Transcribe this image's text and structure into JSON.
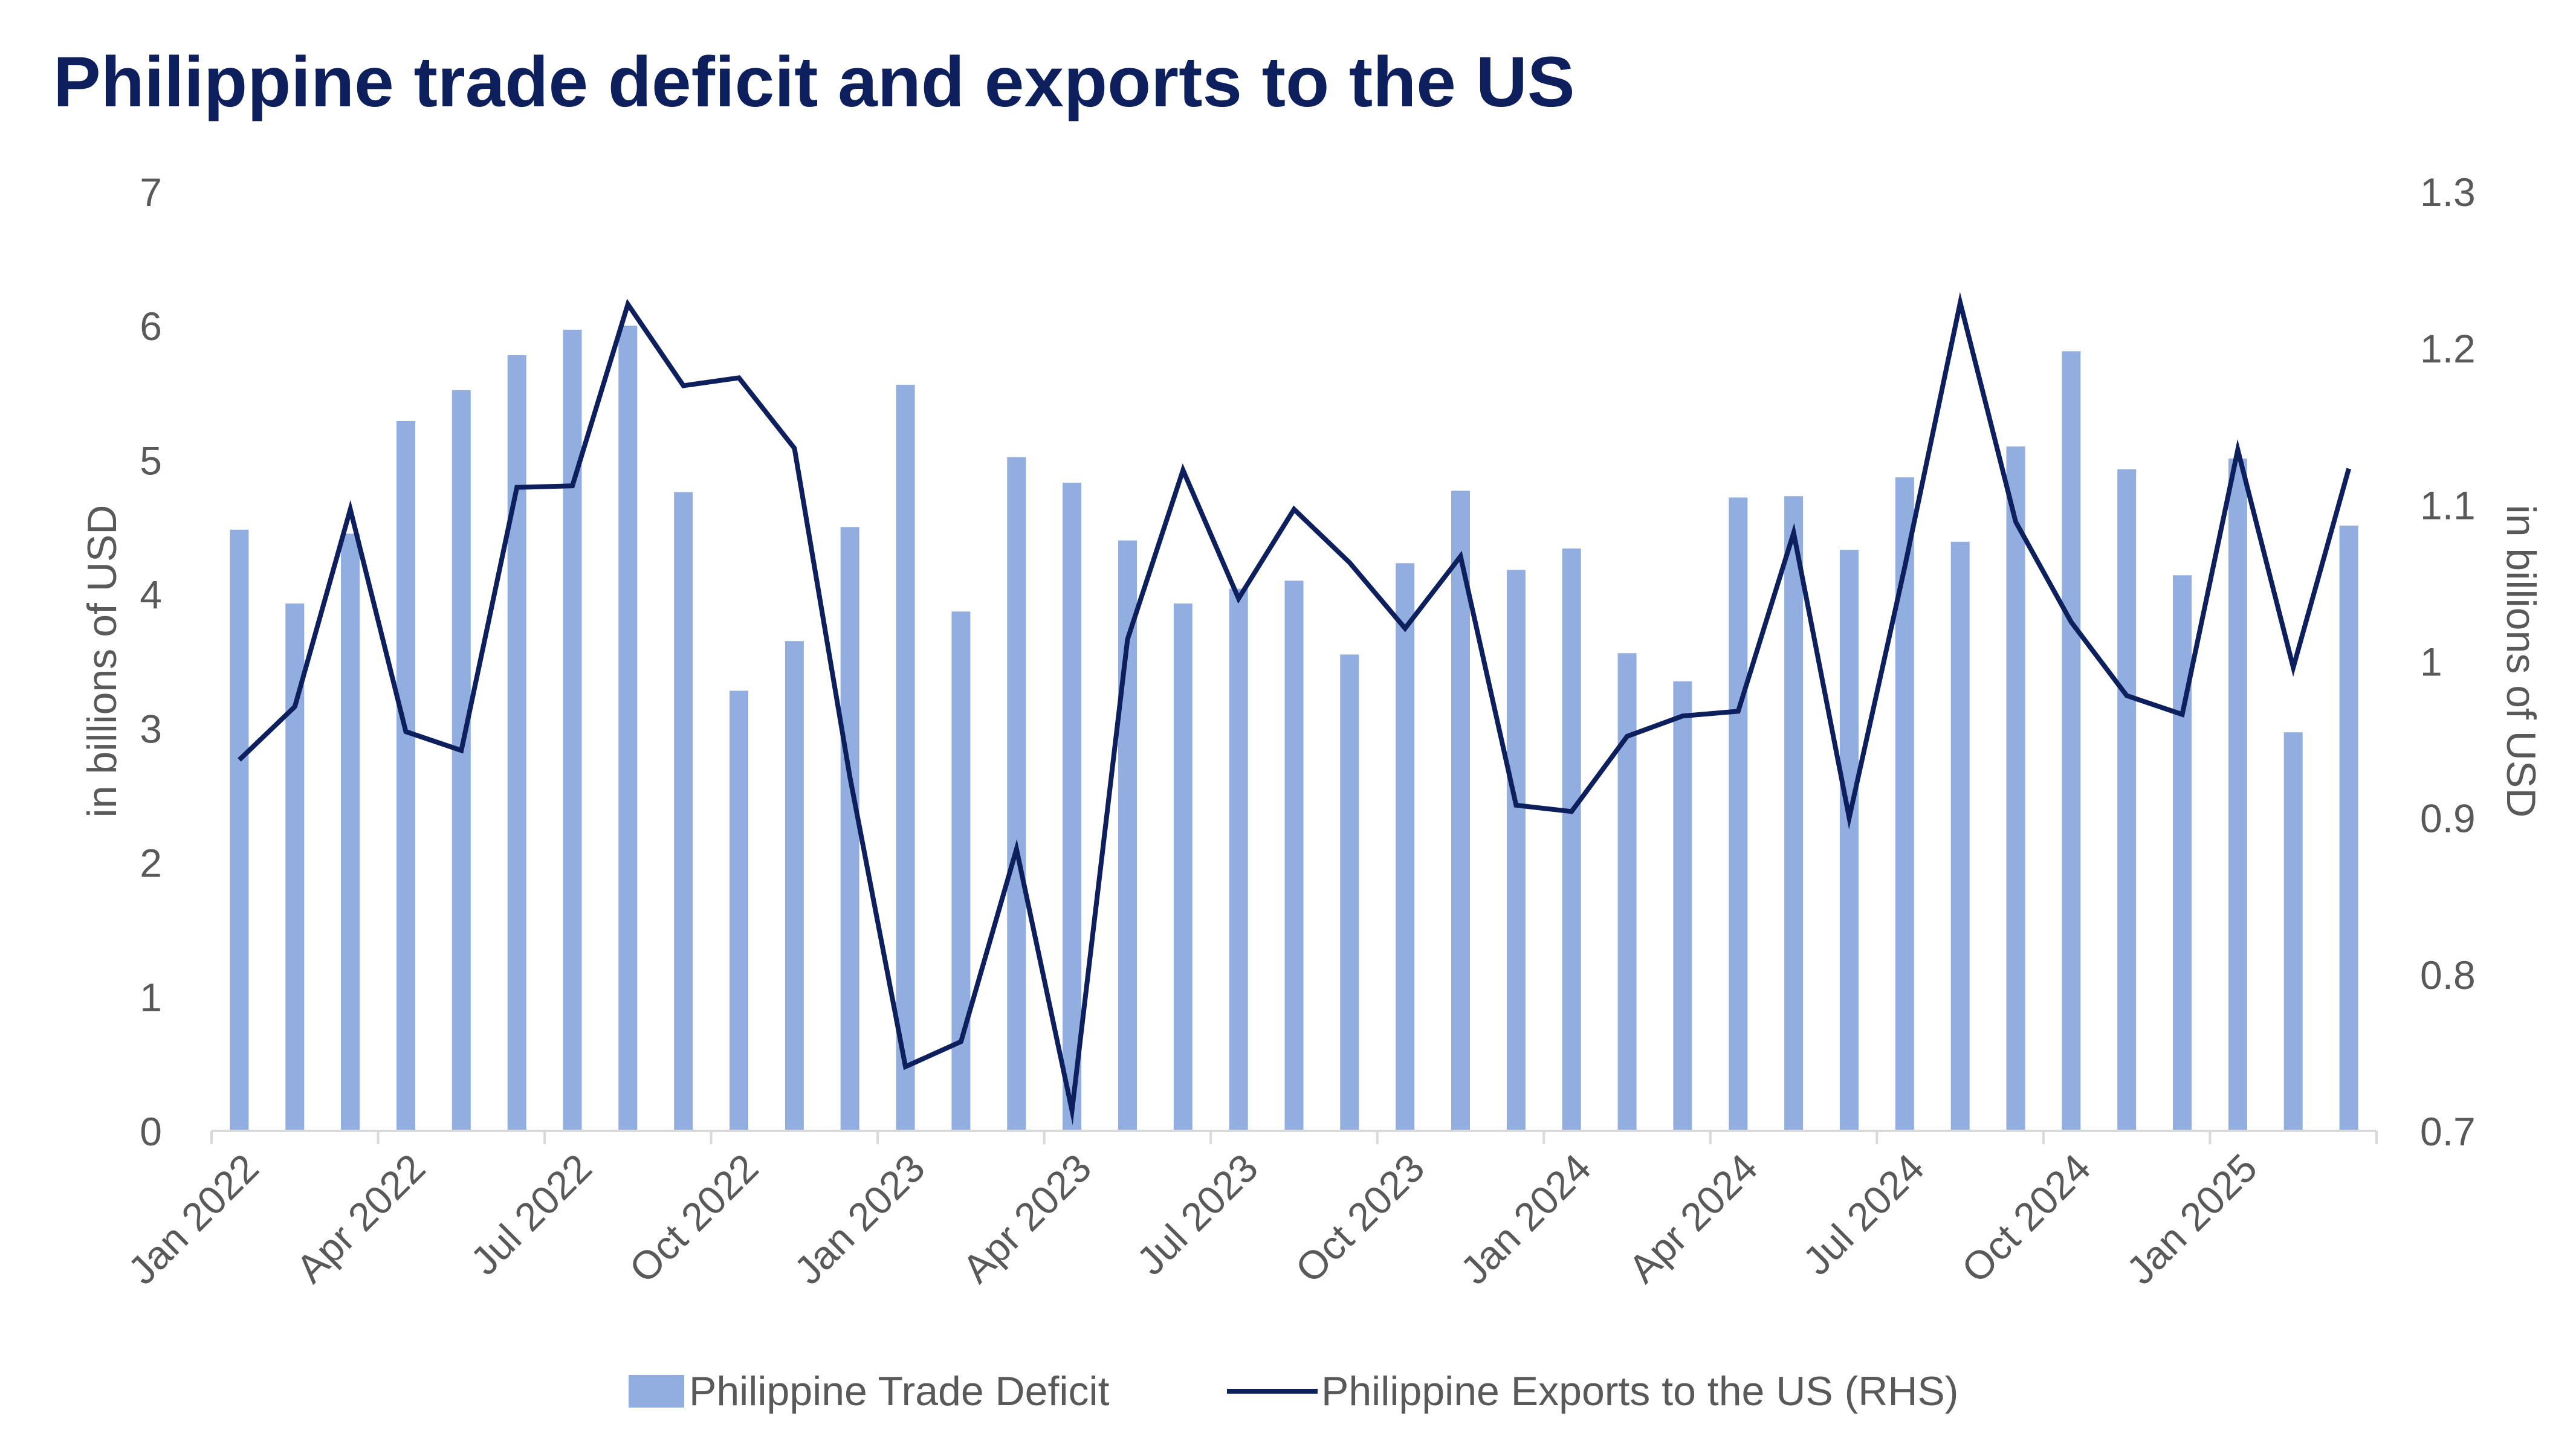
{
  "chart_data": {
    "type": "bar",
    "title": "Philippine trade deficit and exports to the US",
    "categories": [
      "Jan 2022",
      "Feb 2022",
      "Mar 2022",
      "Apr 2022",
      "May 2022",
      "Jun 2022",
      "Jul 2022",
      "Aug 2022",
      "Sep 2022",
      "Oct 2022",
      "Nov 2022",
      "Dec 2022",
      "Jan 2023",
      "Feb 2023",
      "Mar 2023",
      "Apr 2023",
      "May 2023",
      "Jun 2023",
      "Jul 2023",
      "Aug 2023",
      "Sep 2023",
      "Oct 2023",
      "Nov 2023",
      "Dec 2023",
      "Jan 2024",
      "Feb 2024",
      "Mar 2024",
      "Apr 2024",
      "May 2024",
      "Jun 2024",
      "Jul 2024",
      "Aug 2024",
      "Sep 2024",
      "Oct 2024",
      "Nov 2024",
      "Dec 2024",
      "Jan 2025",
      "Feb 2025",
      "Mar 2025"
    ],
    "x_tick_labels": [
      "Jan 2022",
      "Apr 2022",
      "Jul 2022",
      "Oct 2022",
      "Jan 2023",
      "Apr 2023",
      "Jul 2023",
      "Oct 2023",
      "Jan 2024",
      "Apr 2024",
      "Jul 2024",
      "Oct 2024",
      "Jan 2025"
    ],
    "series": [
      {
        "name": "Philippine Trade Deficit",
        "type": "bar",
        "axis": "left",
        "color": "#92aee0",
        "values": [
          4.48,
          3.93,
          4.45,
          5.29,
          5.52,
          5.78,
          5.97,
          6.0,
          4.76,
          3.28,
          3.65,
          4.5,
          5.56,
          3.87,
          5.02,
          4.83,
          4.4,
          3.93,
          4.04,
          4.1,
          3.55,
          4.23,
          4.77,
          4.18,
          4.34,
          3.56,
          3.35,
          4.72,
          4.73,
          4.33,
          4.87,
          4.39,
          5.1,
          5.81,
          4.93,
          4.14,
          5.01,
          2.97,
          4.51
        ]
      },
      {
        "name": "Philippine Exports to the US (RHS)",
        "type": "line",
        "axis": "right",
        "color": "#0d1f5c",
        "values": [
          0.937,
          0.971,
          1.097,
          0.955,
          0.943,
          1.111,
          1.112,
          1.228,
          1.176,
          1.181,
          1.136,
          0.926,
          0.741,
          0.757,
          0.88,
          0.713,
          1.014,
          1.122,
          1.04,
          1.097,
          1.063,
          1.021,
          1.067,
          0.908,
          0.904,
          0.952,
          0.965,
          0.968,
          1.082,
          0.9,
          1.06,
          1.229,
          1.089,
          1.025,
          0.978,
          0.966,
          1.135,
          0.996,
          1.123
        ]
      }
    ],
    "y_left": {
      "label": "in billions of USD",
      "min": 0,
      "max": 7,
      "ticks": [
        "0",
        "1",
        "2",
        "3",
        "4",
        "5",
        "6",
        "7"
      ]
    },
    "y_right": {
      "label": "in billions of USD",
      "min": 0.7,
      "max": 1.3,
      "ticks": [
        "0.7",
        "0.8",
        "0.9",
        "1",
        "1.1",
        "1.2",
        "1.3"
      ]
    },
    "grid": false,
    "legend_position": "bottom"
  }
}
